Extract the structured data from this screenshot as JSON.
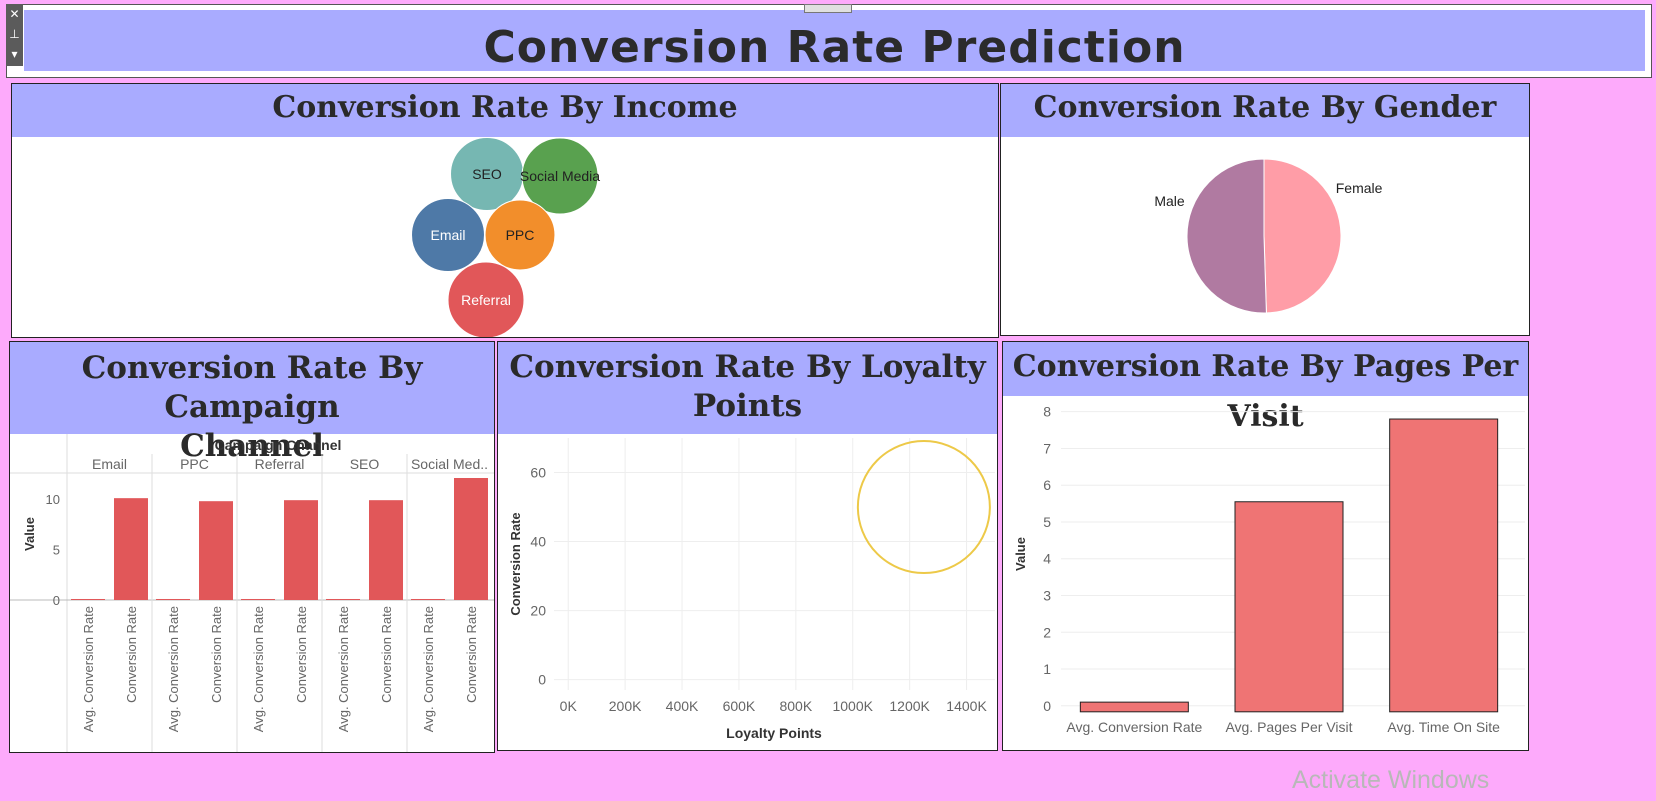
{
  "dashboard": {
    "title": "Conversion Rate Prediction",
    "watermark": "Activate Windows"
  },
  "toolbar": {
    "close_glyph": "✕",
    "pin_glyph": "⊥",
    "menu_glyph": "▾"
  },
  "colors": {
    "page_bg": "#fdaafb",
    "header_bg": "#a9abff",
    "bar": "#e15759",
    "bar_pages": "#ef7474",
    "Email": "#4e79a7",
    "PPC": "#f28e2b",
    "Referral": "#e15759",
    "SEO": "#76b7b2",
    "Social Media": "#59a14f",
    "Male": "#b07aa1",
    "Female": "#ff9da7",
    "loyalty_circle": "#edc948"
  },
  "panels": {
    "income": {
      "title": "Conversion Rate By Income"
    },
    "gender": {
      "title": "Conversion Rate By Gender"
    },
    "campaign": {
      "title_line1": "Conversion Rate By Campaign",
      "title_line2": "Channel"
    },
    "loyalty": {
      "title_line1": "Conversion Rate By Loyalty",
      "title_line2": "Points"
    },
    "pages": {
      "title": "Conversion Rate By Pages Per Visit"
    }
  },
  "chart_data": [
    {
      "id": "income",
      "type": "bubble",
      "title": "Conversion Rate By Income",
      "categories": [
        "SEO",
        "Social Media",
        "Email",
        "PPC",
        "Referral"
      ],
      "relative_size": [
        0.96,
        1.0,
        0.96,
        0.92,
        1.0
      ]
    },
    {
      "id": "gender",
      "type": "pie",
      "title": "Conversion Rate By Gender",
      "labels": [
        "Female",
        "Male"
      ],
      "values": [
        49.5,
        50.5
      ]
    },
    {
      "id": "campaign",
      "type": "bar",
      "title": "Conversion Rate By Campaign Channel",
      "column_header": "Campaign Channel",
      "groups": [
        "Email",
        "PPC",
        "Referral",
        "SEO",
        "Social Med.."
      ],
      "measures": [
        "Avg. Conversion Rate",
        "Conversion Rate"
      ],
      "values": [
        [
          0.1,
          10.1
        ],
        [
          0.1,
          9.8
        ],
        [
          0.1,
          9.9
        ],
        [
          0.1,
          9.9
        ],
        [
          0.1,
          12.1
        ]
      ],
      "ylabel": "Value",
      "yticks": [
        0,
        5,
        10
      ],
      "ylim": [
        0,
        12.1
      ]
    },
    {
      "id": "loyalty",
      "type": "scatter",
      "title": "Conversion Rate By Loyalty Points",
      "xlabel": "Loyalty Points",
      "ylabel": "Conversion Rate",
      "xticks": [
        "0K",
        "200K",
        "400K",
        "600K",
        "800K",
        "1000K",
        "1200K",
        "1400K"
      ],
      "xtick_values": [
        0,
        200000,
        400000,
        600000,
        800000,
        1000000,
        1200000,
        1400000
      ],
      "yticks": [
        0,
        20,
        40,
        60
      ],
      "xlim": [
        -50000,
        1500000
      ],
      "ylim": [
        -3,
        70
      ],
      "points": [
        {
          "x": 1250000,
          "y": 50
        }
      ]
    },
    {
      "id": "pages",
      "type": "bar",
      "title": "Conversion Rate By Pages Per Visit",
      "categories": [
        "Avg. Conversion Rate",
        "Avg. Pages Per Visit",
        "Avg. Time On Site"
      ],
      "values": [
        0.1,
        5.55,
        7.8
      ],
      "ylabel": "Value",
      "yticks": [
        0,
        1,
        2,
        3,
        4,
        5,
        6,
        7,
        8
      ],
      "ylim": [
        -0.25,
        8.1
      ]
    }
  ]
}
